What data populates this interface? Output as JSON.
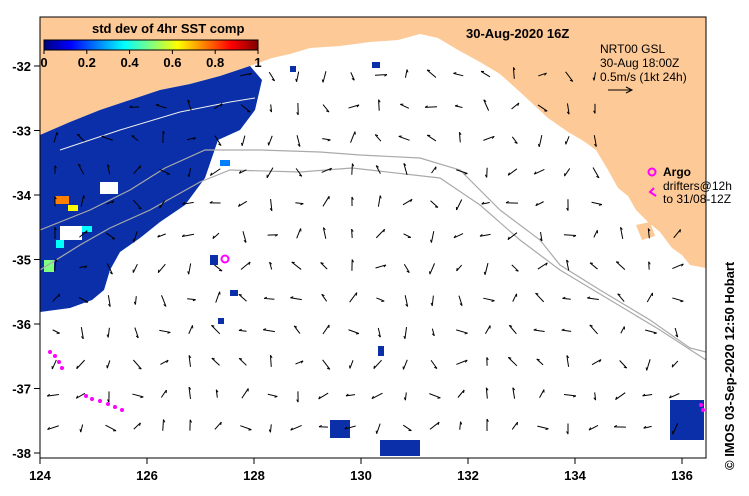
{
  "map": {
    "date_title": "30-Aug-2020 16Z",
    "colorbar": {
      "title": "std dev of 4hr SST comp",
      "ticks": [
        "0",
        "0.2",
        "0.4",
        "0.6",
        "0.8",
        "1"
      ],
      "colormap": [
        "#00007f",
        "#0000ff",
        "#0080ff",
        "#00ffff",
        "#80ff80",
        "#ffff00",
        "#ff8000",
        "#ff0000",
        "#7f0000"
      ]
    },
    "current_info": {
      "line1": "NRT00 GSL",
      "line2": "30-Aug 18:00Z",
      "line3": "0.5m/s (1kt 24h)"
    },
    "argo_label": "Argo",
    "drifters_line1": "drifters@12h",
    "drifters_line2": "to 31/08-12Z",
    "credit": "© IMOS 03-Sep-2020 12:50 Hobart",
    "lon_ticks": [
      "124",
      "126",
      "128",
      "130",
      "132",
      "134",
      "136"
    ],
    "lat_ticks": [
      "-32",
      "-33",
      "-34",
      "-35",
      "-36",
      "-37",
      "-38"
    ],
    "colors": {
      "land": "#fdc996",
      "sst_low": "#0a2fa8",
      "argo": "#ff00ff",
      "drifter": "#ff00ff",
      "contour": "#aaaaaa"
    }
  }
}
